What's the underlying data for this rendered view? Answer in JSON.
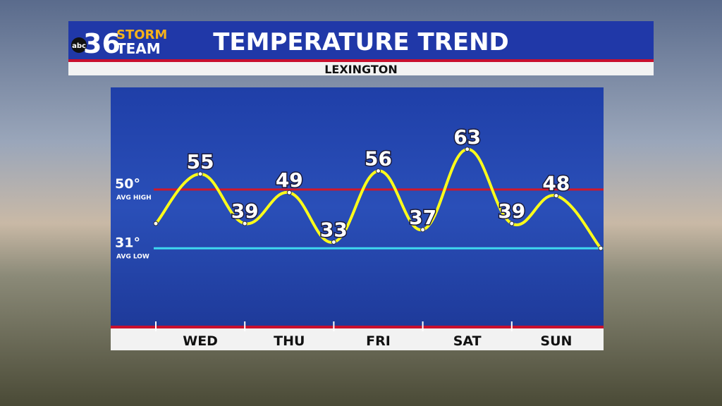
{
  "header": {
    "logo": {
      "network": "abc",
      "number": "36",
      "line1": "STORM",
      "line2": "TEAM"
    }
  },
  "chart_data": {
    "type": "line",
    "title": "TEMPERATURE TREND",
    "subtitle": "LEXINGTON",
    "categories": [
      null,
      "WED",
      null,
      "THU",
      null,
      "FRI",
      null,
      "SAT",
      null,
      "SUN",
      null
    ],
    "series": [
      {
        "name": "Temperature",
        "color": "#ffff1a",
        "values": [
          39,
          55,
          39,
          49,
          33,
          56,
          37,
          63,
          39,
          48,
          31
        ]
      }
    ],
    "ylim": [
      6,
      83
    ],
    "reference_lines": [
      {
        "value": 50,
        "label": "50°",
        "name": "AVG HIGH",
        "color": "#d0182a"
      },
      {
        "value": 31,
        "label": "31°",
        "name": "AVG LOW",
        "color": "#3fd8f0"
      }
    ]
  }
}
